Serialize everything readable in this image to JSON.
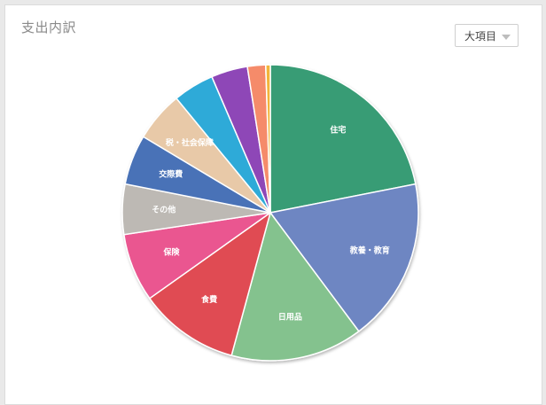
{
  "panel": {
    "title": "支出内訳",
    "dropdown": {
      "selected": "大項目",
      "icon": "chevron-down-icon"
    }
  },
  "chart_data": {
    "type": "pie",
    "title": "支出内訳",
    "slices": [
      {
        "label": "住宅",
        "value": 22.0,
        "color": "#379c74"
      },
      {
        "label": "教養・教育",
        "value": 18.0,
        "color": "#6e86c2"
      },
      {
        "label": "日用品",
        "value": 14.5,
        "color": "#84c28e"
      },
      {
        "label": "食費",
        "value": 11.0,
        "color": "#e04c53"
      },
      {
        "label": "保険",
        "value": 7.5,
        "color": "#ea5790"
      },
      {
        "label": "その他",
        "value": 5.5,
        "color": "#bdb9b4"
      },
      {
        "label": "交際費",
        "value": 5.5,
        "color": "#4a72b7"
      },
      {
        "label": "税・社会保障",
        "value": 5.5,
        "color": "#e8c9a8"
      },
      {
        "label": "",
        "value": 4.5,
        "color": "#2eaad8"
      },
      {
        "label": "",
        "value": 4.0,
        "color": "#8e47b7"
      },
      {
        "label": "",
        "value": 2.0,
        "color": "#f58b6a"
      },
      {
        "label": "",
        "value": 0.5,
        "color": "#f2b53a"
      }
    ]
  }
}
